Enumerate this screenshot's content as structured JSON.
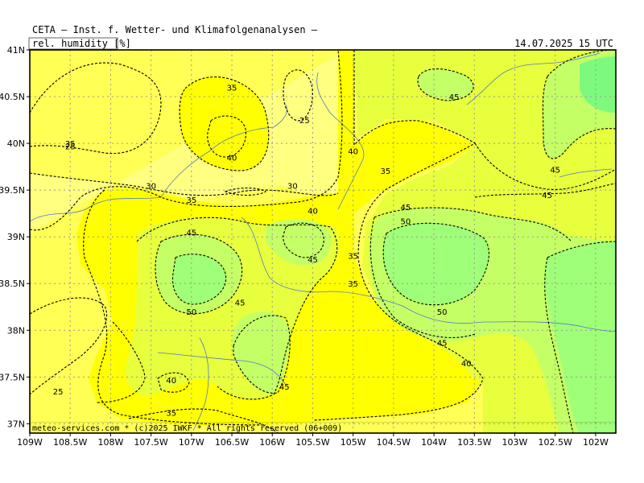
{
  "header": {
    "title": "CETA — Inst. f. Wetter- und Klimafolgenanalysen —",
    "parameter": "rel. humidity [%]",
    "valid_time": "14.07.2025 15 UTC"
  },
  "footer": {
    "credit": "meteo-services.com * (c)2025 IWKF * All rights reserved (06+009)"
  },
  "chart_data": {
    "type": "map",
    "variable": "relative humidity",
    "unit": "%",
    "lon_range": [
      -109,
      -101.75
    ],
    "lat_range": [
      36.9,
      41
    ],
    "x_ticks": [
      "109W",
      "108.5W",
      "108W",
      "107.5W",
      "107W",
      "106.5W",
      "106W",
      "105.5W",
      "105W",
      "104.5W",
      "104W",
      "103.5W",
      "103W",
      "102.5W",
      "102W"
    ],
    "y_ticks": [
      "41N",
      "40.5N",
      "40N",
      "39.5N",
      "39N",
      "38.5N",
      "38N",
      "37.5N",
      "37N"
    ],
    "contour_levels": [
      25,
      30,
      35,
      40,
      45,
      50
    ],
    "contour_labels": [
      {
        "text": "35",
        "lon": -106.5,
        "lat": 40.6
      },
      {
        "text": "25",
        "lon": -105.6,
        "lat": 40.25
      },
      {
        "text": "35",
        "lon": -108.5,
        "lat": 40.0
      },
      {
        "text": "25",
        "lon": -108.5,
        "lat": 39.97
      },
      {
        "text": "40",
        "lon": -106.5,
        "lat": 39.85
      },
      {
        "text": "40",
        "lon": -105.0,
        "lat": 39.92
      },
      {
        "text": "35",
        "lon": -104.6,
        "lat": 39.71
      },
      {
        "text": "45",
        "lon": -103.75,
        "lat": 40.5
      },
      {
        "text": "45",
        "lon": -102.5,
        "lat": 39.72
      },
      {
        "text": "45",
        "lon": -102.6,
        "lat": 39.45
      },
      {
        "text": "30",
        "lon": -107.5,
        "lat": 39.55
      },
      {
        "text": "30",
        "lon": -105.75,
        "lat": 39.55
      },
      {
        "text": "35",
        "lon": -107.0,
        "lat": 39.4
      },
      {
        "text": "40",
        "lon": -105.5,
        "lat": 39.28
      },
      {
        "text": "45",
        "lon": -104.35,
        "lat": 39.32
      },
      {
        "text": "50",
        "lon": -104.35,
        "lat": 39.17
      },
      {
        "text": "45",
        "lon": -107.0,
        "lat": 39.05
      },
      {
        "text": "45",
        "lon": -105.5,
        "lat": 38.76
      },
      {
        "text": "35",
        "lon": -105.0,
        "lat": 38.8
      },
      {
        "text": "35",
        "lon": -105.0,
        "lat": 38.5
      },
      {
        "text": "45",
        "lon": -106.4,
        "lat": 38.3
      },
      {
        "text": "50",
        "lon": -107.0,
        "lat": 38.2
      },
      {
        "text": "50",
        "lon": -103.9,
        "lat": 38.2
      },
      {
        "text": "45",
        "lon": -103.9,
        "lat": 37.87
      },
      {
        "text": "40",
        "lon": -103.6,
        "lat": 37.65
      },
      {
        "text": "40",
        "lon": -107.25,
        "lat": 37.47
      },
      {
        "text": "45",
        "lon": -105.85,
        "lat": 37.4
      },
      {
        "text": "25",
        "lon": -108.65,
        "lat": 37.35
      },
      {
        "text": "35",
        "lon": -107.25,
        "lat": 37.12
      }
    ],
    "colors": {
      "rh_25": "#ffff80",
      "rh_30": "#ffff55",
      "rh_35": "#ffff00",
      "rh_40": "#e7ff3d",
      "rh_45": "#c5ff66",
      "rh_50": "#a0ff78",
      "rh_55": "#7dfa7d",
      "river": "#5577cc",
      "grid": "#999999"
    },
    "grid": true,
    "grid_style": "dotted"
  }
}
